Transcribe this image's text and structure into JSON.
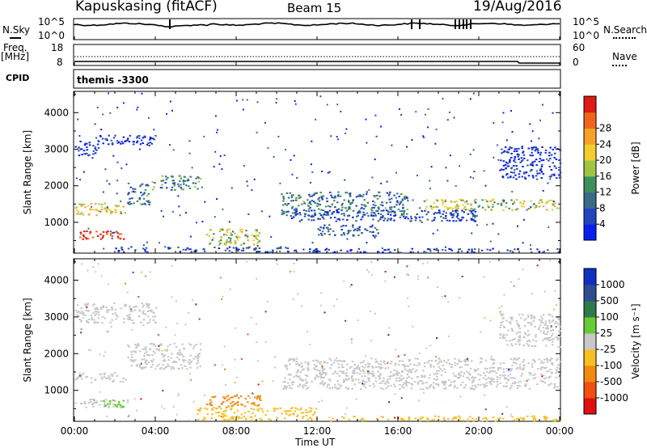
{
  "header": {
    "station": "Kapuskasing (fitACF)",
    "beam": "Beam 15",
    "date": "19/Aug/2016"
  },
  "top_panels": {
    "nsky_label": "N.Sky",
    "nsearch_label": "N.Search",
    "noise_ticks_left": [
      "10^5",
      "10^0"
    ],
    "noise_ticks_right": [
      "10^5",
      "10^0"
    ],
    "freq_label": "Freq.",
    "freq_unit": "[MHz]",
    "freq_ticks": [
      "18",
      "8"
    ],
    "nave_label": "Nave",
    "nave_ticks": [
      "60",
      "0"
    ],
    "cpid_label": "CPID",
    "cpid_value": "themis -3300"
  },
  "chart_data": [
    {
      "type": "heatmap",
      "name": "power",
      "ylabel": "Slant Range [km]",
      "xlabel": "Time UT",
      "yticks": [
        1000,
        2000,
        3000,
        4000
      ],
      "ylim": [
        180,
        4560
      ],
      "xlim": [
        0,
        24
      ],
      "colorbar": {
        "label": "Power [dB]",
        "ticks": [
          4,
          8,
          12,
          16,
          20,
          24,
          28
        ],
        "colors": [
          "#0a1ef0",
          "#2244c0",
          "#3a6a8a",
          "#3d8f5c",
          "#9fc445",
          "#f2cd2f",
          "#f7a12a",
          "#f0651e",
          "#e01a14"
        ]
      },
      "echo_regions": [
        {
          "t0": 0.0,
          "t1": 2.5,
          "r0": 1200,
          "r1": 1550,
          "level": 0.6
        },
        {
          "t0": 0.2,
          "t1": 2.6,
          "r0": 550,
          "r1": 780,
          "level": 0.95
        },
        {
          "t0": 0.0,
          "t1": 1.2,
          "r0": 2850,
          "r1": 3250,
          "level": 0.1
        },
        {
          "t0": 1.2,
          "t1": 4.0,
          "r0": 3100,
          "r1": 3400,
          "level": 0.08
        },
        {
          "t0": 2.6,
          "t1": 3.8,
          "r0": 1500,
          "r1": 2100,
          "level": 0.3
        },
        {
          "t0": 3.8,
          "t1": 6.2,
          "r0": 1900,
          "r1": 2300,
          "level": 0.35
        },
        {
          "t0": 6.5,
          "t1": 9.2,
          "r0": 400,
          "r1": 850,
          "level": 0.55
        },
        {
          "t0": 2.0,
          "t1": 11.0,
          "r0": 200,
          "r1": 350,
          "level": 0.2
        },
        {
          "t0": 10.2,
          "t1": 16.5,
          "r0": 1200,
          "r1": 1850,
          "level": 0.3
        },
        {
          "t0": 10.5,
          "t1": 20.0,
          "r0": 1050,
          "r1": 1350,
          "level": 0.15
        },
        {
          "t0": 12.0,
          "t1": 15.0,
          "r0": 650,
          "r1": 950,
          "level": 0.25
        },
        {
          "t0": 17.0,
          "t1": 24.0,
          "r0": 1350,
          "r1": 1650,
          "level": 0.55
        },
        {
          "t0": 21.0,
          "t1": 24.0,
          "r0": 2200,
          "r1": 3100,
          "level": 0.1
        },
        {
          "t0": 11.5,
          "t1": 24.0,
          "r0": 190,
          "r1": 300,
          "level": 0.15
        }
      ]
    },
    {
      "type": "heatmap",
      "name": "velocity",
      "ylabel": "Slant Range [km]",
      "xlabel": "Time UT",
      "yticks": [
        1000,
        2000,
        3000,
        4000
      ],
      "ylim": [
        180,
        4560
      ],
      "xlim": [
        0,
        24
      ],
      "xticks": [
        "00:00",
        "04:00",
        "08:00",
        "12:00",
        "16:00",
        "20:00",
        "00:00"
      ],
      "colorbar": {
        "label": "Velocity [m s⁻¹]",
        "ticks": [
          "1000",
          "500",
          "100",
          "25",
          "-25",
          "-100",
          "-500",
          "-1000"
        ],
        "colors": [
          "#1030c0",
          "#2f4c90",
          "#2f7a4a",
          "#66cc33",
          "#c8c8c8",
          "#f5c020",
          "#f08a10",
          "#f05010",
          "#e01010"
        ]
      },
      "echo_regions": [
        {
          "t0": 0.0,
          "t1": 2.5,
          "r0": 1250,
          "r1": 1500,
          "color": "#c8c8c8"
        },
        {
          "t0": 0.2,
          "t1": 2.6,
          "r0": 550,
          "r1": 780,
          "color": "#c8c8c8"
        },
        {
          "t0": 1.4,
          "t1": 2.4,
          "r0": 560,
          "r1": 760,
          "color": "#66cc33"
        },
        {
          "t0": 0.0,
          "t1": 4.0,
          "r0": 2850,
          "r1": 3400,
          "color": "#c8c8c8"
        },
        {
          "t0": 2.6,
          "t1": 6.2,
          "r0": 1600,
          "r1": 2300,
          "color": "#c8c8c8"
        },
        {
          "t0": 6.5,
          "t1": 9.2,
          "r0": 550,
          "r1": 900,
          "color": "#f08a10"
        },
        {
          "t0": 6.0,
          "t1": 12.0,
          "r0": 200,
          "r1": 550,
          "color": "#f5c020"
        },
        {
          "t0": 10.2,
          "t1": 24.0,
          "r0": 1050,
          "r1": 1900,
          "color": "#c8c8c8"
        },
        {
          "t0": 21.0,
          "t1": 24.0,
          "r0": 2200,
          "r1": 3100,
          "color": "#c8c8c8"
        },
        {
          "t0": 12.0,
          "t1": 24.0,
          "r0": 190,
          "r1": 320,
          "color": "#f5c020"
        }
      ]
    }
  ],
  "xaxis_title": "Time UT"
}
